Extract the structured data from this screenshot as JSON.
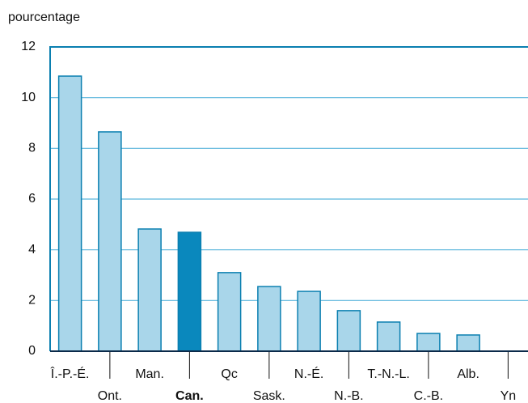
{
  "chart_data": {
    "type": "bar",
    "y_label": "pourcentage",
    "categories": [
      "Î.-P.-É.",
      "Ont.",
      "Man.",
      "Can.",
      "Qc",
      "Sask.",
      "N.-É.",
      "N.-B.",
      "T.-N.-L.",
      "C.-B.",
      "Alb.",
      "Yn"
    ],
    "values": [
      10.85,
      8.65,
      4.82,
      4.69,
      3.1,
      2.55,
      2.36,
      1.6,
      1.15,
      0.7,
      0.64,
      null
    ],
    "colors": [
      "#a9d6ea",
      "#a9d6ea",
      "#a9d6ea",
      "#0a88bd",
      "#a9d6ea",
      "#a9d6ea",
      "#a9d6ea",
      "#a9d6ea",
      "#a9d6ea",
      "#a9d6ea",
      "#a9d6ea",
      "#a9d6ea"
    ],
    "highlight": "Can.",
    "ylim": [
      0,
      12
    ],
    "yticks": [
      0,
      2,
      4,
      6,
      8,
      10,
      12
    ],
    "grid": true
  }
}
